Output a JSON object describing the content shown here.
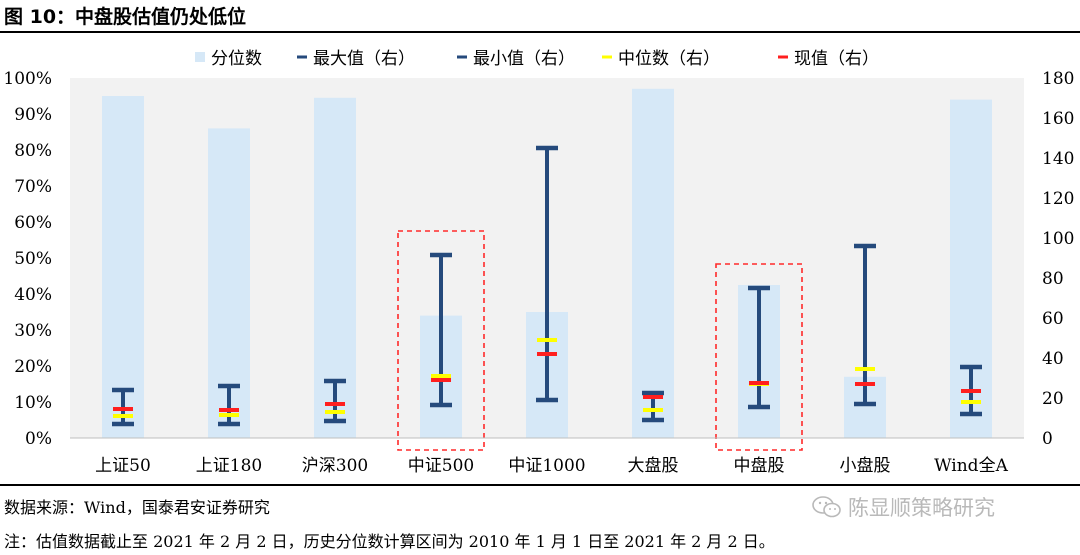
{
  "figure": {
    "title": "图 10：中盘股估值仍处低位",
    "source": "数据来源：Wind，国泰君安证券研究",
    "note": "注：估值数据截止至 2021 年 2 月 2 日，历史分位数计算区间为 2010 年 1 月 1 日至 2021 年 2 月 2 日。",
    "watermark": "陈显顺策略研究"
  },
  "colors": {
    "bar": "#d6e8f7",
    "plot_bg": "#f2f2f2",
    "errorbar": "#254a7c",
    "median": "#ffff00",
    "current": "#ff1f1f",
    "highlight_box": "#ff2a2a"
  },
  "chart_data": {
    "type": "bar",
    "categories": [
      "上证50",
      "上证180",
      "沪深300",
      "中证500",
      "中证1000",
      "大盘股",
      "中盘股",
      "小盘股",
      "Wind全A"
    ],
    "legend": {
      "position": "top",
      "items": [
        "分位数",
        "最大值（右）",
        "最小值（右）",
        "中位数（右）",
        "现值（右）"
      ]
    },
    "series": [
      {
        "name": "分位数",
        "axis": "left",
        "values": [
          95,
          86,
          94.5,
          34,
          35,
          97,
          42.5,
          17,
          94
        ]
      },
      {
        "name": "最大值（右）",
        "axis": "right",
        "values": [
          24,
          26,
          28.5,
          91.5,
          145,
          22.5,
          75,
          96,
          35.5
        ]
      },
      {
        "name": "最小值（右）",
        "axis": "right",
        "values": [
          7,
          7,
          8.5,
          16.5,
          19,
          9,
          15.5,
          17,
          12
        ]
      },
      {
        "name": "中位数（右）",
        "axis": "right",
        "values": [
          11,
          11.5,
          13,
          31,
          49,
          14,
          27,
          34.5,
          18
        ]
      },
      {
        "name": "现值（右）",
        "axis": "right",
        "values": [
          14.5,
          14,
          17,
          29,
          42,
          20.5,
          27.5,
          27,
          23.5
        ]
      }
    ],
    "y_left": {
      "min": 0,
      "max": 100,
      "step": 10,
      "format": "percent",
      "tick_labels": [
        "0%",
        "10%",
        "20%",
        "30%",
        "40%",
        "50%",
        "60%",
        "70%",
        "80%",
        "90%",
        "100%"
      ]
    },
    "y_right": {
      "min": 0,
      "max": 180,
      "step": 20,
      "tick_labels": [
        "0",
        "20",
        "40",
        "60",
        "80",
        "100",
        "120",
        "140",
        "160",
        "180"
      ]
    },
    "highlighted": [
      "中证500",
      "中盘股"
    ],
    "grid": false
  }
}
